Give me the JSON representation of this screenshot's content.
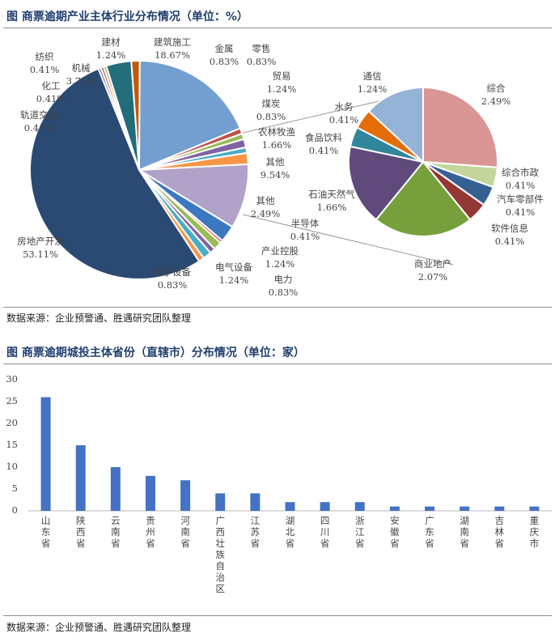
{
  "titles": {
    "pie": "图  商票逾期产业主体行业分布情况（单位：%）",
    "bar": "图  商票逾期城投主体省份（直辖市）分布情况（单位：家）"
  },
  "sources": {
    "pie": "数据来源：企业预警通、胜遇研究团队整理",
    "bar": "数据来源：企业预警通、胜遇研究团队整理"
  },
  "chart_data": [
    {
      "type": "pie",
      "title": "商票逾期产业主体行业分布情况（单位：%）",
      "slices": [
        {
          "label": "轨道交通",
          "value": 0.41,
          "color": "#4f81bd"
        },
        {
          "label": "化工",
          "value": 0.41,
          "color": "#c0504d"
        },
        {
          "label": "纺织",
          "value": 0.41,
          "color": "#9bbb59"
        },
        {
          "label": "机械",
          "value": 3.73,
          "color": "#236c7a"
        },
        {
          "label": "建材",
          "value": 1.24,
          "color": "#c05a0a"
        },
        {
          "label": "建筑施工",
          "value": 18.67,
          "color": "#729fcf"
        },
        {
          "label": "金属",
          "value": 0.83,
          "color": "#c0504d"
        },
        {
          "label": "零售",
          "value": 0.83,
          "color": "#9bbb59"
        },
        {
          "label": "贸易",
          "value": 1.24,
          "color": "#8064a2"
        },
        {
          "label": "煤炭",
          "value": 0.83,
          "color": "#4bacc6"
        },
        {
          "label": "农林牧渔",
          "value": 1.66,
          "color": "#f79646"
        },
        {
          "label": "其他",
          "value": 9.54,
          "color": "#b0a2c8"
        },
        {
          "label": "其他",
          "value": 2.49,
          "color": "#3c78c0"
        },
        {
          "label": "半导体",
          "value": 0.41,
          "color": "#c0504d"
        },
        {
          "label": "产业控股",
          "value": 1.24,
          "color": "#9bbb59"
        },
        {
          "label": "电力",
          "value": 0.83,
          "color": "#8064a2"
        },
        {
          "label": "电气设备",
          "value": 1.24,
          "color": "#4bacc6"
        },
        {
          "label": "电子设备",
          "value": 0.83,
          "color": "#f79646"
        },
        {
          "label": "房地产开发",
          "value": 53.11,
          "color": "#2a4a73"
        }
      ],
      "sub_pie": [
        {
          "label": "综合",
          "value": 2.49,
          "color": "#d99694"
        },
        {
          "label": "综合市政",
          "value": 0.41,
          "color": "#c3d69b"
        },
        {
          "label": "汽车零部件",
          "value": 0.41,
          "color": "#376092"
        },
        {
          "label": "软件信息",
          "value": 0.41,
          "color": "#953735"
        },
        {
          "label": "商业地产",
          "value": 2.07,
          "color": "#77a03c"
        },
        {
          "label": "石油天然气",
          "value": 1.66,
          "color": "#604a7b"
        },
        {
          "label": "食品饮料",
          "value": 0.41,
          "color": "#31859c"
        },
        {
          "label": "水务",
          "value": 0.41,
          "color": "#e46c0a"
        },
        {
          "label": "通信",
          "value": 1.24,
          "color": "#95b3d7"
        }
      ]
    },
    {
      "type": "bar",
      "title": "商票逾期城投主体省份（直辖市）分布情况（单位：家）",
      "categories": [
        "山东省",
        "陕西省",
        "云南省",
        "贵州省",
        "河南省",
        "广西壮族自治区",
        "江苏省",
        "湖北省",
        "四川省",
        "浙江省",
        "安徽省",
        "广东省",
        "湖南省",
        "吉林省",
        "重庆市"
      ],
      "values": [
        26,
        15,
        10,
        8,
        7,
        4,
        4,
        2,
        2,
        2,
        1,
        1,
        1,
        1,
        1
      ],
      "ylim": [
        0,
        30
      ],
      "yticks": [
        "0",
        "5",
        "10",
        "15",
        "20",
        "25",
        "30"
      ],
      "color": "#4472c4"
    }
  ]
}
